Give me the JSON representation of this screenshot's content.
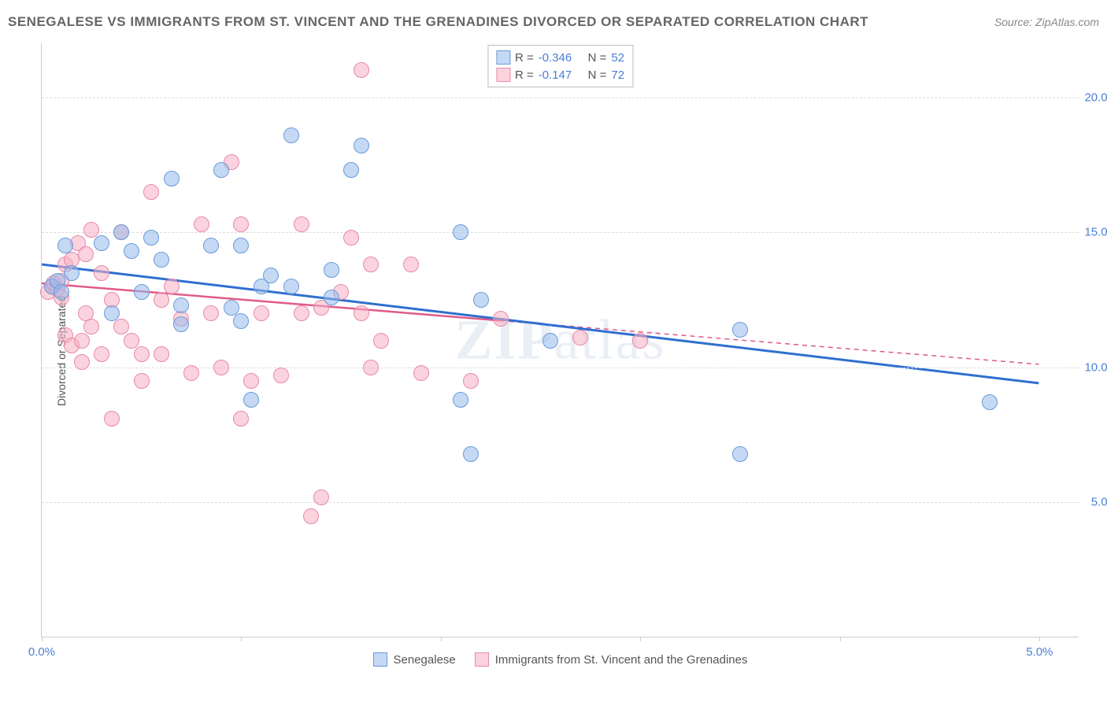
{
  "title": "SENEGALESE VS IMMIGRANTS FROM ST. VINCENT AND THE GRENADINES DIVORCED OR SEPARATED CORRELATION CHART",
  "source": "Source: ZipAtlas.com",
  "ylabel": "Divorced or Separated",
  "watermark": "ZIPatlas",
  "chart": {
    "type": "scatter",
    "background_color": "#ffffff",
    "grid_color": "#dddddd",
    "axis_color": "#cccccc",
    "xlim": [
      0,
      5.2
    ],
    "ylim": [
      0,
      22
    ],
    "y_ticks": [
      5,
      10,
      15,
      20
    ],
    "y_tick_labels": [
      "5.0%",
      "10.0%",
      "15.0%",
      "20.0%"
    ],
    "x_ticks": [
      0,
      1,
      2,
      3,
      4,
      5
    ],
    "x_left_label": "0.0%",
    "x_right_label": "5.0%",
    "marker_radius": 10,
    "series": [
      {
        "name": "Senegalese",
        "fill_color": "rgba(150,185,235,0.55)",
        "stroke_color": "#6a9bd8",
        "line_color": "#2f6fd0",
        "line_width": 3,
        "r_value": "-0.346",
        "n_value": "52",
        "trend": {
          "x1": 0,
          "y1": 13.8,
          "x2": 5.0,
          "y2": 9.4
        },
        "points": [
          [
            0.05,
            13.0
          ],
          [
            0.08,
            13.2
          ],
          [
            0.1,
            12.8
          ],
          [
            0.12,
            14.5
          ],
          [
            0.15,
            13.5
          ],
          [
            0.3,
            14.6
          ],
          [
            0.35,
            12.0
          ],
          [
            0.4,
            15.0
          ],
          [
            0.45,
            14.3
          ],
          [
            0.5,
            12.8
          ],
          [
            0.55,
            14.8
          ],
          [
            0.6,
            14.0
          ],
          [
            0.65,
            17.0
          ],
          [
            0.7,
            12.3
          ],
          [
            0.7,
            11.6
          ],
          [
            0.85,
            14.5
          ],
          [
            0.9,
            17.3
          ],
          [
            0.95,
            12.2
          ],
          [
            1.0,
            11.7
          ],
          [
            1.0,
            14.5
          ],
          [
            1.05,
            8.8
          ],
          [
            1.1,
            13.0
          ],
          [
            1.15,
            13.4
          ],
          [
            1.25,
            18.6
          ],
          [
            1.25,
            13.0
          ],
          [
            1.45,
            12.6
          ],
          [
            1.45,
            13.6
          ],
          [
            1.55,
            17.3
          ],
          [
            1.6,
            18.2
          ],
          [
            2.1,
            15.0
          ],
          [
            2.1,
            8.8
          ],
          [
            2.15,
            6.8
          ],
          [
            2.2,
            12.5
          ],
          [
            2.55,
            11.0
          ],
          [
            3.5,
            11.4
          ],
          [
            3.5,
            6.8
          ],
          [
            4.75,
            8.7
          ]
        ]
      },
      {
        "name": "Immigrants from St. Vincent and the Grenadines",
        "fill_color": "rgba(245,175,195,0.55)",
        "stroke_color": "#e88aa8",
        "line_color": "#e05a8a",
        "line_width": 2.5,
        "line_dash": "6,5",
        "r_value": "-0.147",
        "n_value": "72",
        "trend": {
          "x1": 0,
          "y1": 13.1,
          "x2": 5.0,
          "y2": 10.1
        },
        "points": [
          [
            0.03,
            12.8
          ],
          [
            0.05,
            13.0
          ],
          [
            0.06,
            13.1
          ],
          [
            0.08,
            12.9
          ],
          [
            0.1,
            13.2
          ],
          [
            0.1,
            12.6
          ],
          [
            0.12,
            13.8
          ],
          [
            0.12,
            11.2
          ],
          [
            0.15,
            14.0
          ],
          [
            0.15,
            10.8
          ],
          [
            0.18,
            14.6
          ],
          [
            0.2,
            11.0
          ],
          [
            0.2,
            10.2
          ],
          [
            0.22,
            12.0
          ],
          [
            0.22,
            14.2
          ],
          [
            0.25,
            11.5
          ],
          [
            0.25,
            15.1
          ],
          [
            0.3,
            10.5
          ],
          [
            0.3,
            13.5
          ],
          [
            0.35,
            12.5
          ],
          [
            0.35,
            8.1
          ],
          [
            0.4,
            15.0
          ],
          [
            0.4,
            11.5
          ],
          [
            0.45,
            11.0
          ],
          [
            0.5,
            9.5
          ],
          [
            0.5,
            10.5
          ],
          [
            0.55,
            16.5
          ],
          [
            0.6,
            12.5
          ],
          [
            0.6,
            10.5
          ],
          [
            0.65,
            13.0
          ],
          [
            0.7,
            11.8
          ],
          [
            0.75,
            9.8
          ],
          [
            0.8,
            15.3
          ],
          [
            0.85,
            12.0
          ],
          [
            0.9,
            10.0
          ],
          [
            0.95,
            17.6
          ],
          [
            1.0,
            15.3
          ],
          [
            1.0,
            8.1
          ],
          [
            1.05,
            9.5
          ],
          [
            1.1,
            12.0
          ],
          [
            1.2,
            9.7
          ],
          [
            1.3,
            15.3
          ],
          [
            1.3,
            12.0
          ],
          [
            1.35,
            4.5
          ],
          [
            1.4,
            5.2
          ],
          [
            1.4,
            12.2
          ],
          [
            1.5,
            12.8
          ],
          [
            1.55,
            14.8
          ],
          [
            1.6,
            12.0
          ],
          [
            1.6,
            21.0
          ],
          [
            1.65,
            13.8
          ],
          [
            1.65,
            10.0
          ],
          [
            1.7,
            11.0
          ],
          [
            1.85,
            13.8
          ],
          [
            1.9,
            9.8
          ],
          [
            2.15,
            9.5
          ],
          [
            2.3,
            11.8
          ],
          [
            2.7,
            11.1
          ],
          [
            3.0,
            11.0
          ]
        ]
      }
    ]
  },
  "legend_top": {
    "r_label": "R =",
    "n_label": "N ="
  }
}
